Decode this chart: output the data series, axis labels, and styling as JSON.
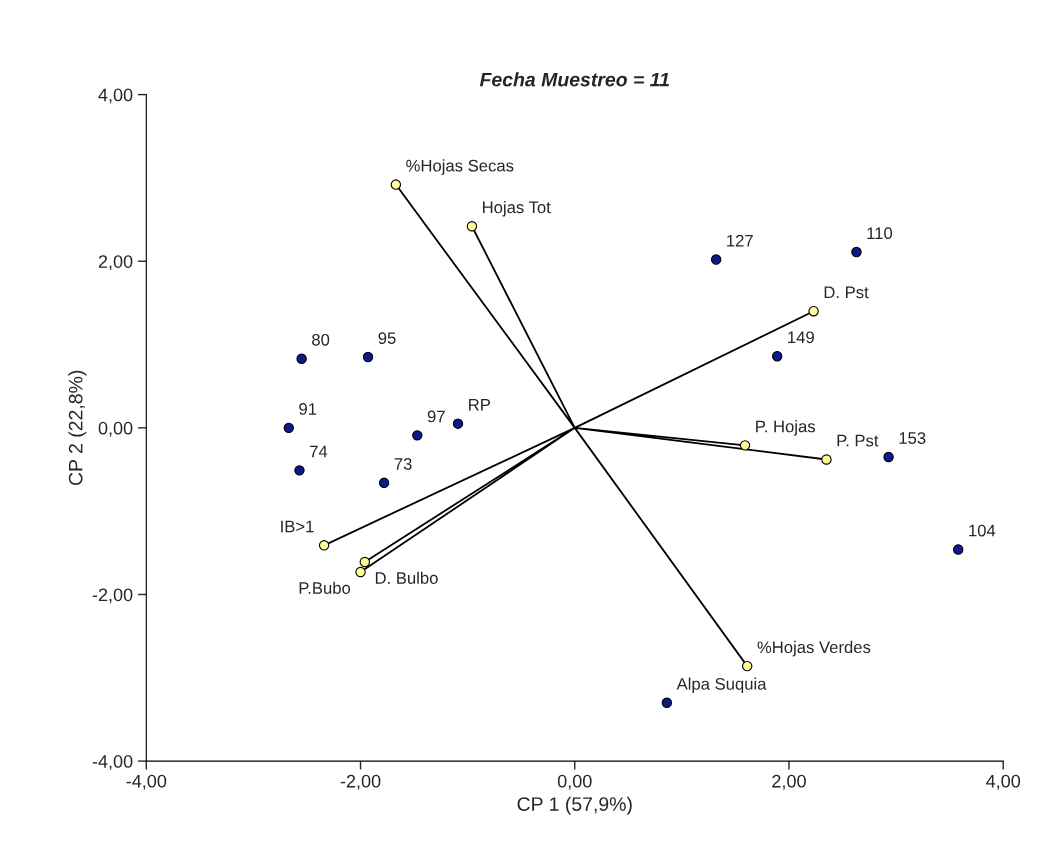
{
  "chart_data": {
    "type": "scatter",
    "title": "Fecha Muestreo = 11",
    "xlabel": "CP 1 (57,9%)",
    "ylabel": "CP 2 (22,8%)",
    "xlim": [
      -4,
      4
    ],
    "ylim": [
      -4,
      4
    ],
    "xticks": [
      {
        "value": -4,
        "label": "-4,00"
      },
      {
        "value": -2,
        "label": "-2,00"
      },
      {
        "value": 0,
        "label": "0,00"
      },
      {
        "value": 2,
        "label": "2,00"
      },
      {
        "value": 4,
        "label": "4,00"
      }
    ],
    "yticks": [
      {
        "value": -4,
        "label": "-4,00"
      },
      {
        "value": -2,
        "label": "-2,00"
      },
      {
        "value": 0,
        "label": "0,00"
      },
      {
        "value": 2,
        "label": "2,00"
      },
      {
        "value": 4,
        "label": "4,00"
      }
    ],
    "grid": false,
    "legend": false,
    "series": [
      {
        "type": "line",
        "color": "#000000",
        "marker": "none",
        "x": [
          0,
          -1.67,
          null,
          0,
          -0.96,
          null,
          0,
          2.23,
          null,
          0,
          1.59,
          null,
          0,
          2.35,
          null,
          0,
          1.61,
          null,
          0,
          -2.34,
          null,
          0,
          -1.96,
          null,
          0,
          -2.0
        ],
        "values": [
          0,
          2.92,
          null,
          0,
          2.42,
          null,
          0,
          1.4,
          null,
          0,
          -0.21,
          null,
          0,
          -0.38,
          null,
          0,
          -2.86,
          null,
          0,
          -1.41,
          null,
          0,
          -1.61,
          null,
          0,
          -1.73
        ]
      },
      {
        "color": "#0a1a8c",
        "marker": "circle",
        "x": [
          1.32,
          2.63,
          1.89,
          2.93,
          3.58,
          0.86,
          -2.55,
          -1.93,
          -1.09,
          -1.47,
          -2.67,
          -2.57,
          -1.78
        ],
        "values": [
          2.02,
          2.11,
          0.86,
          -0.35,
          -1.46,
          -3.3,
          0.83,
          0.85,
          0.05,
          -0.09,
          0.0,
          -0.51,
          -0.66
        ]
      },
      {
        "color": "#ffff99",
        "marker": "circle",
        "x": [
          -1.67,
          -0.96,
          2.23,
          1.59,
          2.35,
          1.61,
          -2.34,
          -1.96,
          -2.0
        ],
        "values": [
          2.92,
          2.42,
          1.4,
          -0.21,
          -0.38,
          -2.86,
          -1.41,
          -1.61,
          -1.73
        ]
      }
    ],
    "annotations": [
      {
        "text": "127",
        "x": 1.32,
        "y": 2.02
      },
      {
        "text": "110",
        "x": 2.63,
        "y": 2.11
      },
      {
        "text": "149",
        "x": 1.89,
        "y": 0.86
      },
      {
        "text": "153",
        "x": 2.93,
        "y": -0.35
      },
      {
        "text": "104",
        "x": 3.58,
        "y": -1.46
      },
      {
        "text": "Alpa Suquia",
        "x": 0.86,
        "y": -3.3
      },
      {
        "text": "80",
        "x": -2.55,
        "y": 0.83
      },
      {
        "text": "95",
        "x": -1.93,
        "y": 0.85
      },
      {
        "text": "RP",
        "x": -1.09,
        "y": 0.05
      },
      {
        "text": "97",
        "x": -1.47,
        "y": -0.09
      },
      {
        "text": "91",
        "x": -2.67,
        "y": 0.0
      },
      {
        "text": "74",
        "x": -2.57,
        "y": -0.51
      },
      {
        "text": "73",
        "x": -1.78,
        "y": -0.66
      },
      {
        "text": "%Hojas Secas",
        "x": -1.67,
        "y": 2.92
      },
      {
        "text": "Hojas Tot",
        "x": -0.96,
        "y": 2.42
      },
      {
        "text": "D. Pst",
        "x": 2.23,
        "y": 1.4
      },
      {
        "text": "P. Hojas",
        "x": 1.59,
        "y": -0.21
      },
      {
        "text": "P. Pst",
        "x": 2.35,
        "y": -0.38
      },
      {
        "text": "%Hojas Verdes",
        "x": 1.61,
        "y": -2.86
      },
      {
        "text": "IB>1",
        "x": -2.34,
        "y": -1.41
      },
      {
        "text": "D. Bulbo",
        "x": -1.96,
        "y": -1.61
      },
      {
        "text": "P.Bubo",
        "x": -2.0,
        "y": -1.73
      }
    ]
  }
}
